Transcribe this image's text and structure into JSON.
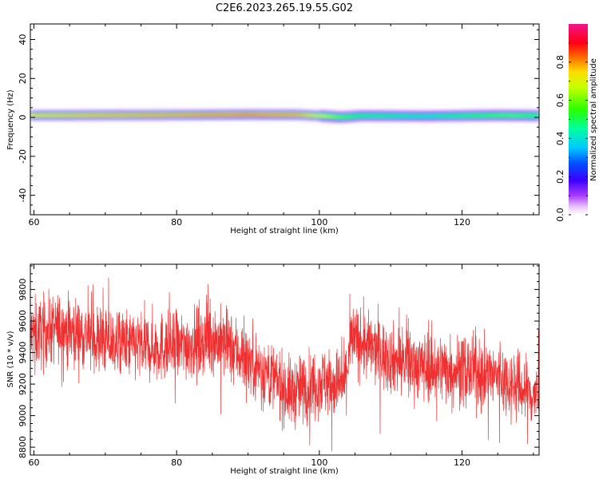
{
  "figure": {
    "title": "C2E6.2023.265.19.55.G02"
  },
  "chart_data": [
    {
      "type": "heatmap",
      "xlabel": "Height of straight line (km)",
      "ylabel": "Frequency (Hz)",
      "xlim": [
        59.5,
        130.8
      ],
      "ylim": [
        -50,
        48
      ],
      "xticks": [
        60,
        80,
        100,
        120
      ],
      "yticks": [
        -40,
        -20,
        0,
        20,
        40
      ],
      "colorbar": {
        "label": "Normalized spectral amplitude",
        "range": [
          0.0,
          1.0
        ],
        "ticks": [
          "0.0",
          "0.2",
          "0.4",
          "0.6",
          "0.8"
        ],
        "colormap": "rainbow (white-violet-blue-cyan-green-yellow-red-magenta)"
      },
      "band_center_hz": [
        {
          "x": 60,
          "f": 1.2
        },
        {
          "x": 70,
          "f": 1.3
        },
        {
          "x": 80,
          "f": 1.4
        },
        {
          "x": 90,
          "f": 1.6
        },
        {
          "x": 97,
          "f": 1.5
        },
        {
          "x": 100,
          "f": 1.0
        },
        {
          "x": 103,
          "f": 0.3
        },
        {
          "x": 106,
          "f": 1.0
        },
        {
          "x": 115,
          "f": 0.8
        },
        {
          "x": 125,
          "f": 1.2
        },
        {
          "x": 130.8,
          "f": 1.0
        }
      ],
      "peak_amplitude": [
        {
          "x": 60,
          "a": 0.78
        },
        {
          "x": 70,
          "a": 0.84
        },
        {
          "x": 80,
          "a": 0.86
        },
        {
          "x": 90,
          "a": 0.92
        },
        {
          "x": 97,
          "a": 0.86
        },
        {
          "x": 100,
          "a": 0.72
        },
        {
          "x": 103,
          "a": 0.6
        },
        {
          "x": 106,
          "a": 0.52
        },
        {
          "x": 115,
          "a": 0.46
        },
        {
          "x": 122,
          "a": 0.56
        },
        {
          "x": 127,
          "a": 0.6
        },
        {
          "x": 130.8,
          "a": 0.55
        }
      ]
    },
    {
      "type": "line",
      "xlabel": "Height of straight line (km)",
      "ylabel": "SNR (10 * v/v)",
      "xlim": [
        59.5,
        130.8
      ],
      "ylim": [
        8750,
        9960
      ],
      "xticks": [
        60,
        80,
        100,
        120
      ],
      "yticks": [
        8800,
        9000,
        9200,
        9400,
        9600,
        9800
      ],
      "color": "#f03030",
      "trend": [
        {
          "x": 60,
          "y": 9520
        },
        {
          "x": 64,
          "y": 9560
        },
        {
          "x": 70,
          "y": 9470
        },
        {
          "x": 75,
          "y": 9440
        },
        {
          "x": 80,
          "y": 9430
        },
        {
          "x": 85,
          "y": 9490
        },
        {
          "x": 88,
          "y": 9420
        },
        {
          "x": 92,
          "y": 9290
        },
        {
          "x": 96,
          "y": 9140
        },
        {
          "x": 100,
          "y": 9220
        },
        {
          "x": 103.5,
          "y": 9200
        },
        {
          "x": 104.5,
          "y": 9490
        },
        {
          "x": 110,
          "y": 9360
        },
        {
          "x": 115,
          "y": 9310
        },
        {
          "x": 120,
          "y": 9290
        },
        {
          "x": 125,
          "y": 9250
        },
        {
          "x": 130.8,
          "y": 9110
        }
      ],
      "noise_sd": 110
    }
  ]
}
